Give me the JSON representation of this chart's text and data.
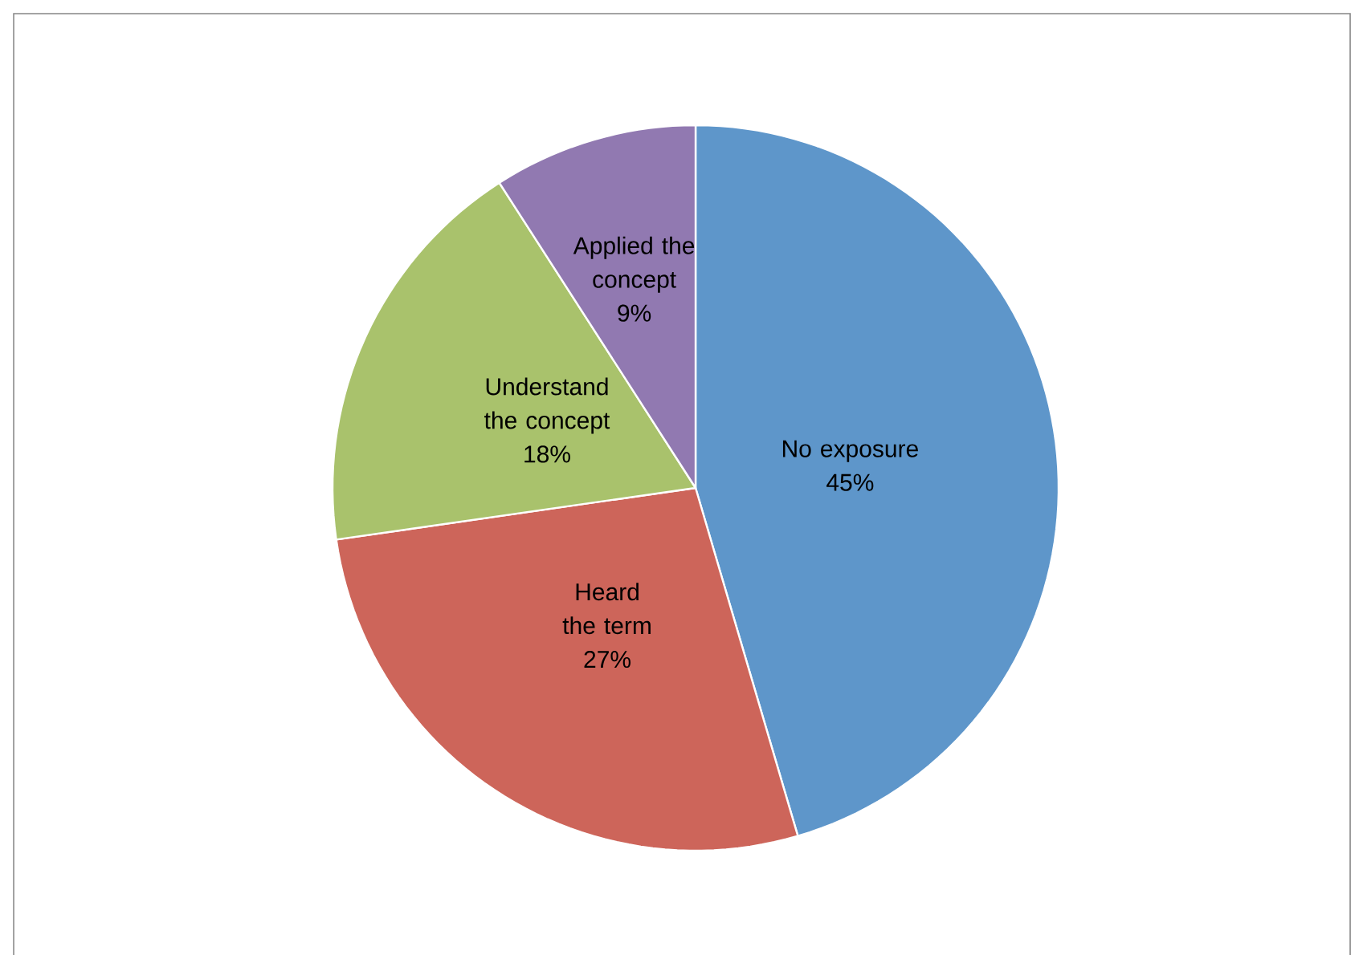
{
  "chart_data": {
    "type": "pie",
    "categories": [
      "No exposure",
      "Heard the term",
      "Understand the concept",
      "Applied the concept"
    ],
    "values": [
      45,
      27,
      18,
      9
    ],
    "value_labels": [
      "45%",
      "27%",
      "18%",
      "9%"
    ],
    "colors": [
      "#5e96ca",
      "#cd655a",
      "#a9c26c",
      "#9179b1"
    ]
  }
}
